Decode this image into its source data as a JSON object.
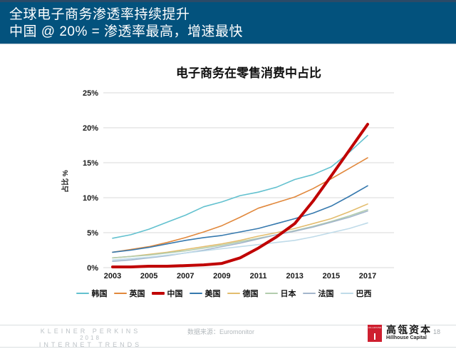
{
  "header": {
    "line1": "全球电子商务渗透率持续提升",
    "line2": "中国 @ 20% = 渗透率最高，增速最快",
    "bg_color": "#03527d",
    "accent_strip_color": "#2b4a67"
  },
  "chart_data": {
    "type": "line",
    "title": "电子商务在零售消费中占比",
    "ylabel": "占比 %",
    "ylim": [
      0,
      25
    ],
    "grid": true,
    "legend_position": "bottom",
    "x": [
      2003,
      2004,
      2005,
      2006,
      2007,
      2008,
      2009,
      2010,
      2011,
      2012,
      2013,
      2014,
      2015,
      2016,
      2017
    ],
    "x_ticks": [
      2003,
      2005,
      2007,
      2009,
      2011,
      2013,
      2015,
      2017
    ],
    "x_tick_labels": [
      "2003",
      "2005",
      "2007",
      "2009",
      "2011",
      "2013",
      "2015",
      "2017"
    ],
    "y_ticks": [
      0,
      5,
      10,
      15,
      20,
      25
    ],
    "y_tick_labels": [
      "0%",
      "5%",
      "10%",
      "15%",
      "20%",
      "25%"
    ],
    "series": [
      {
        "key": "korea",
        "name": "韩国",
        "color": "#63c1cf",
        "width": 1.6,
        "values": [
          4.2,
          4.7,
          5.5,
          6.5,
          7.5,
          8.7,
          9.4,
          10.3,
          10.8,
          11.5,
          12.6,
          13.3,
          14.4,
          16.5,
          18.9
        ]
      },
      {
        "key": "uk",
        "name": "英国",
        "color": "#e1883c",
        "width": 1.6,
        "values": [
          2.2,
          2.6,
          3.0,
          3.6,
          4.3,
          5.1,
          6.0,
          7.2,
          8.5,
          9.3,
          10.1,
          11.3,
          12.7,
          14.2,
          15.7
        ]
      },
      {
        "key": "usa",
        "name": "美国",
        "color": "#3679ae",
        "width": 1.6,
        "values": [
          2.2,
          2.5,
          2.9,
          3.4,
          3.9,
          4.3,
          4.6,
          5.1,
          5.6,
          6.3,
          7.0,
          7.8,
          8.8,
          10.2,
          11.7
        ]
      },
      {
        "key": "germany",
        "name": "德国",
        "color": "#e3bd6e",
        "width": 1.6,
        "values": [
          1.4,
          1.6,
          1.9,
          2.2,
          2.6,
          3.0,
          3.4,
          3.9,
          4.5,
          5.0,
          5.6,
          6.3,
          7.0,
          8.0,
          9.1
        ]
      },
      {
        "key": "japan",
        "name": "日本",
        "color": "#b3cdae",
        "width": 1.6,
        "values": [
          1.4,
          1.6,
          1.8,
          2.1,
          2.4,
          2.8,
          3.2,
          3.7,
          4.2,
          4.7,
          5.3,
          5.9,
          6.6,
          7.4,
          8.3
        ]
      },
      {
        "key": "france",
        "name": "法国",
        "color": "#a3b6cc",
        "width": 1.6,
        "values": [
          0.9,
          1.1,
          1.4,
          1.7,
          2.1,
          2.5,
          3.0,
          3.5,
          4.1,
          4.7,
          5.2,
          5.8,
          6.5,
          7.2,
          8.1
        ]
      },
      {
        "key": "brazil",
        "name": "巴西",
        "color": "#bfdbe9",
        "width": 1.6,
        "values": [
          1.1,
          1.3,
          1.5,
          1.8,
          2.1,
          2.4,
          2.7,
          3.0,
          3.3,
          3.6,
          3.9,
          4.4,
          5.0,
          5.6,
          6.4
        ]
      },
      {
        "key": "china",
        "name": "中国",
        "color": "#c00000",
        "width": 4,
        "values": [
          0.1,
          0.1,
          0.2,
          0.2,
          0.3,
          0.4,
          0.6,
          1.4,
          2.8,
          4.4,
          6.3,
          9.5,
          13.1,
          16.8,
          20.5
        ]
      }
    ],
    "legend_order": [
      "korea",
      "uk",
      "china",
      "usa",
      "germany",
      "japan",
      "france",
      "brazil"
    ]
  },
  "footer": {
    "source": "数据来源：Euromonitor",
    "kp_line1": "KLEINER PERKINS",
    "kp_line2": "2018",
    "kp_line3": "INTERNET TRENDS",
    "hillhouse_logo_text": "HILLHOUSE",
    "hillhouse_cn": "高瓴资本",
    "hillhouse_en": "Hillhouse Capital",
    "page_number": "18"
  }
}
